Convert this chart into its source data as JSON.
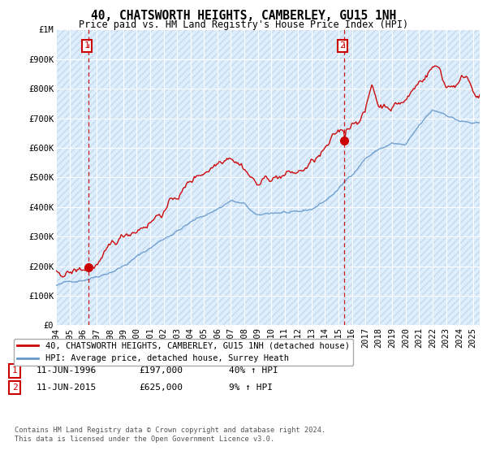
{
  "title": "40, CHATSWORTH HEIGHTS, CAMBERLEY, GU15 1NH",
  "subtitle": "Price paid vs. HM Land Registry's House Price Index (HPI)",
  "yticks": [
    0,
    100000,
    200000,
    300000,
    400000,
    500000,
    600000,
    700000,
    800000,
    900000,
    1000000
  ],
  "ytick_labels": [
    "£0",
    "£100K",
    "£200K",
    "£300K",
    "£400K",
    "£500K",
    "£600K",
    "£700K",
    "£800K",
    "£900K",
    "£1M"
  ],
  "xmin": 1994.0,
  "xmax": 2025.5,
  "ymin": 0,
  "ymax": 1000000,
  "sale1_x": 1996.44,
  "sale1_y": 197000,
  "sale1_label": "1",
  "sale1_date": "11-JUN-1996",
  "sale1_price": "£197,000",
  "sale1_hpi": "40% ↑ HPI",
  "sale2_x": 2015.44,
  "sale2_y": 625000,
  "sale2_label": "2",
  "sale2_date": "11-JUN-2015",
  "sale2_price": "£625,000",
  "sale2_hpi": "9% ↑ HPI",
  "line_color_sale": "#cc0000",
  "line_color_hpi": "#6699cc",
  "background_color": "#ddeeff",
  "grid_color": "#bbccdd",
  "legend_label_sale": "40, CHATSWORTH HEIGHTS, CAMBERLEY, GU15 1NH (detached house)",
  "legend_label_hpi": "HPI: Average price, detached house, Surrey Heath",
  "footnote": "Contains HM Land Registry data © Crown copyright and database right 2024.\nThis data is licensed under the Open Government Licence v3.0.",
  "xtick_years": [
    1994,
    1995,
    1996,
    1997,
    1998,
    1999,
    2000,
    2001,
    2002,
    2003,
    2004,
    2005,
    2006,
    2007,
    2008,
    2009,
    2010,
    2011,
    2012,
    2013,
    2014,
    2015,
    2016,
    2017,
    2018,
    2019,
    2020,
    2021,
    2022,
    2023,
    2024,
    2025
  ]
}
